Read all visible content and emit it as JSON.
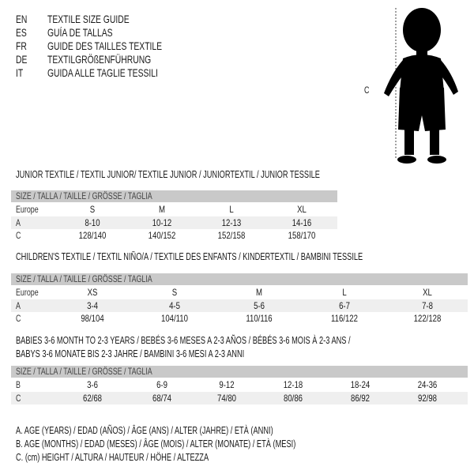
{
  "guide_titles": [
    {
      "lang": "EN",
      "title": "TEXTILE SIZE GUIDE"
    },
    {
      "lang": "ES",
      "title": "GUÍA DE TALLAS"
    },
    {
      "lang": "FR",
      "title": "GUIDE DES TAILLES TEXTILE"
    },
    {
      "lang": "DE",
      "title": "TEXTILGRÖßENFÜHRUNG"
    },
    {
      "lang": "IT",
      "title": "GUIDA ALLE TAGLIE TESSILI"
    }
  ],
  "figure": {
    "label": "C"
  },
  "size_header": "SIZE / TALLA / TAILLE / GRÖSSE / TAGLIA",
  "junior": {
    "title": "JUNIOR TEXTILE / TEXTIL JUNIOR/ TEXTILE JUNIOR / JUNIORTEXTIL / JUNIOR TESSILE",
    "rows": [
      {
        "label": "Europe",
        "values": [
          "S",
          "M",
          "L",
          "XL"
        ]
      },
      {
        "label": "A",
        "values": [
          "8-10",
          "10-12",
          "12-13",
          "14-16"
        ]
      },
      {
        "label": "C",
        "values": [
          "128/140",
          "140/152",
          "152/158",
          "158/170"
        ]
      }
    ]
  },
  "children": {
    "title": "CHILDREN'S TEXTILE / TEXTIL NIÑO/A / TEXTILE DES ENFANTS / KINDERTEXTIL / BAMBINI TESSILE",
    "rows": [
      {
        "label": "Europe",
        "values": [
          "XS",
          "S",
          "M",
          "L",
          "XL"
        ]
      },
      {
        "label": "A",
        "values": [
          "3-4",
          "4-5",
          "5-6",
          "6-7",
          "7-8"
        ]
      },
      {
        "label": "C",
        "values": [
          "98/104",
          "104/110",
          "110/116",
          "116/122",
          "122/128"
        ]
      }
    ]
  },
  "babies": {
    "title_line1": "BABIES 3-6 MONTH TO 2-3 YEARS / BEBÉS 3-6 MESES A 2-3 AÑOS / BÉBÉS 3-6 MOIS À 2-3 ANS /",
    "title_line2": "BABYS 3-6 MONATE BIS 2-3 JAHRE / BAMBINI 3-6 MESI A 2-3 ANNI",
    "rows": [
      {
        "label": "B",
        "values": [
          "3-6",
          "6-9",
          "9-12",
          "12-18",
          "18-24",
          "24-36"
        ]
      },
      {
        "label": "C",
        "values": [
          "62/68",
          "68/74",
          "74/80",
          "80/86",
          "86/92",
          "92/98"
        ]
      }
    ]
  },
  "legend": [
    "A. AGE (YEARS) / EDAD (AÑOS) / ÂGE (ANS) / ALTER (JAHRE) / ETÀ (ANNI)",
    "B. AGE (MONTHS) / EDAD (MESES) / ÂGE (MOIS) / ALTER (MONATE) / ETÀ (MESI)",
    "C. (cm) HEIGHT / ALTURA / HAUTEUR / HÖHE / ALTEZZA"
  ]
}
